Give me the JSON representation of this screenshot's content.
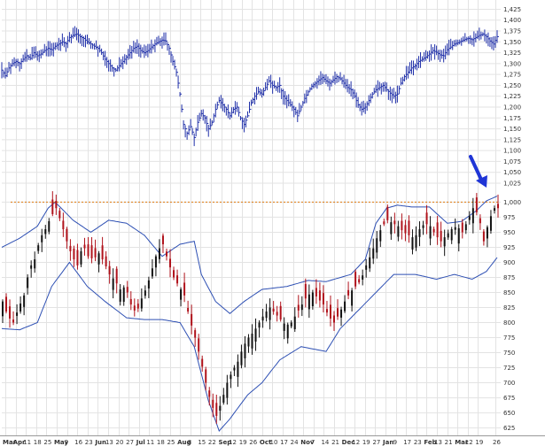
{
  "chart_data": [
    {
      "type": "ohlc",
      "panel": "top",
      "y_ticks": [
        "1,425",
        "1,400",
        "1,375",
        "1,350",
        "1,325",
        "1,300",
        "1,275",
        "1,250",
        "1,225",
        "1,200",
        "1,175",
        "1,150",
        "1,125",
        "1,100",
        "1,075",
        "1,050",
        "1,025"
      ],
      "ylim": [
        1025,
        1430
      ],
      "series_color": "#1f2fa8",
      "close_path": [
        [
          0,
          1285
        ],
        [
          2,
          1272
        ],
        [
          4,
          1290
        ],
        [
          6,
          1300
        ],
        [
          8,
          1305
        ],
        [
          10,
          1300
        ],
        [
          12,
          1310
        ],
        [
          14,
          1318
        ],
        [
          16,
          1312
        ],
        [
          18,
          1325
        ],
        [
          20,
          1318
        ],
        [
          22,
          1322
        ],
        [
          24,
          1330
        ],
        [
          26,
          1335
        ],
        [
          28,
          1332
        ],
        [
          30,
          1340
        ],
        [
          32,
          1345
        ],
        [
          34,
          1350
        ],
        [
          36,
          1346
        ],
        [
          38,
          1360
        ],
        [
          40,
          1365
        ],
        [
          42,
          1368
        ],
        [
          44,
          1362
        ],
        [
          46,
          1358
        ],
        [
          48,
          1350
        ],
        [
          50,
          1345
        ],
        [
          52,
          1340
        ],
        [
          54,
          1335
        ],
        [
          56,
          1325
        ],
        [
          58,
          1310
        ],
        [
          60,
          1300
        ],
        [
          62,
          1290
        ],
        [
          64,
          1285
        ],
        [
          66,
          1295
        ],
        [
          68,
          1305
        ],
        [
          70,
          1315
        ],
        [
          72,
          1325
        ],
        [
          74,
          1335
        ],
        [
          76,
          1340
        ],
        [
          78,
          1330
        ],
        [
          80,
          1325
        ],
        [
          82,
          1330
        ],
        [
          84,
          1338
        ],
        [
          86,
          1345
        ],
        [
          88,
          1350
        ],
        [
          90,
          1354
        ],
        [
          92,
          1352
        ],
        [
          94,
          1335
        ],
        [
          96,
          1305
        ],
        [
          98,
          1280
        ],
        [
          100,
          1230
        ],
        [
          102,
          1160
        ],
        [
          104,
          1140
        ],
        [
          106,
          1155
        ],
        [
          108,
          1130
        ],
        [
          110,
          1165
        ],
        [
          112,
          1185
        ],
        [
          114,
          1175
        ],
        [
          116,
          1150
        ],
        [
          118,
          1165
        ],
        [
          120,
          1195
        ],
        [
          122,
          1215
        ],
        [
          124,
          1205
        ],
        [
          126,
          1195
        ],
        [
          128,
          1180
        ],
        [
          130,
          1195
        ],
        [
          132,
          1200
        ],
        [
          134,
          1175
        ],
        [
          136,
          1160
        ],
        [
          138,
          1180
        ],
        [
          140,
          1210
        ],
        [
          142,
          1225
        ],
        [
          144,
          1235
        ],
        [
          146,
          1230
        ],
        [
          148,
          1245
        ],
        [
          150,
          1260
        ],
        [
          152,
          1250
        ],
        [
          154,
          1245
        ],
        [
          156,
          1250
        ],
        [
          158,
          1225
        ],
        [
          160,
          1215
        ],
        [
          162,
          1205
        ],
        [
          164,
          1195
        ],
        [
          166,
          1180
        ],
        [
          168,
          1200
        ],
        [
          170,
          1220
        ],
        [
          172,
          1235
        ],
        [
          174,
          1248
        ],
        [
          176,
          1255
        ],
        [
          178,
          1262
        ],
        [
          180,
          1268
        ],
        [
          182,
          1260
        ],
        [
          184,
          1255
        ],
        [
          186,
          1262
        ],
        [
          188,
          1270
        ],
        [
          190,
          1265
        ],
        [
          192,
          1255
        ],
        [
          194,
          1245
        ],
        [
          196,
          1240
        ],
        [
          198,
          1225
        ],
        [
          200,
          1205
        ],
        [
          202,
          1195
        ],
        [
          204,
          1200
        ],
        [
          206,
          1215
        ],
        [
          208,
          1230
        ],
        [
          210,
          1240
        ],
        [
          212,
          1245
        ],
        [
          214,
          1250
        ],
        [
          216,
          1240
        ],
        [
          218,
          1232
        ],
        [
          220,
          1225
        ],
        [
          222,
          1230
        ],
        [
          224,
          1255
        ],
        [
          226,
          1270
        ],
        [
          228,
          1280
        ],
        [
          230,
          1290
        ],
        [
          232,
          1295
        ],
        [
          234,
          1305
        ],
        [
          236,
          1310
        ],
        [
          238,
          1315
        ],
        [
          240,
          1322
        ],
        [
          242,
          1330
        ],
        [
          244,
          1326
        ],
        [
          246,
          1320
        ],
        [
          248,
          1318
        ],
        [
          250,
          1332
        ],
        [
          252,
          1338
        ],
        [
          254,
          1345
        ],
        [
          256,
          1348
        ],
        [
          258,
          1352
        ],
        [
          260,
          1356
        ],
        [
          262,
          1358
        ],
        [
          264,
          1355
        ],
        [
          266,
          1360
        ],
        [
          268,
          1365
        ],
        [
          270,
          1368
        ],
        [
          272,
          1362
        ],
        [
          274,
          1352
        ],
        [
          276,
          1345
        ],
        [
          278,
          1362
        ]
      ]
    },
    {
      "type": "candlestick",
      "panel": "bottom",
      "y_ticks": [
        "1,000",
        "975",
        "950",
        "925",
        "900",
        "875",
        "850",
        "825",
        "800",
        "775",
        "750",
        "725",
        "700",
        "675",
        "650",
        "625"
      ],
      "ylim": [
        620,
        1030
      ],
      "reference_line": 1000,
      "reference_color": "#e07a10",
      "up_color": "#111111",
      "down_color": "#b0121b",
      "band_color": "#2d4fb3",
      "arrow_color": "#1f35d6",
      "close_path": [
        [
          0,
          835
        ],
        [
          3,
          810
        ],
        [
          6,
          800
        ],
        [
          9,
          825
        ],
        [
          12,
          845
        ],
        [
          15,
          890
        ],
        [
          18,
          905
        ],
        [
          21,
          940
        ],
        [
          24,
          955
        ],
        [
          27,
          975
        ],
        [
          30,
          990
        ],
        [
          33,
          965
        ],
        [
          36,
          935
        ],
        [
          39,
          910
        ],
        [
          42,
          895
        ],
        [
          45,
          930
        ],
        [
          48,
          910
        ],
        [
          51,
          905
        ],
        [
          54,
          915
        ],
        [
          57,
          900
        ],
        [
          60,
          880
        ],
        [
          63,
          870
        ],
        [
          66,
          855
        ],
        [
          69,
          860
        ],
        [
          72,
          830
        ],
        [
          75,
          815
        ],
        [
          78,
          840
        ],
        [
          81,
          860
        ],
        [
          84,
          890
        ],
        [
          87,
          920
        ],
        [
          90,
          930
        ],
        [
          93,
          900
        ],
        [
          96,
          875
        ],
        [
          99,
          860
        ],
        [
          102,
          845
        ],
        [
          105,
          805
        ],
        [
          108,
          775
        ],
        [
          111,
          740
        ],
        [
          114,
          700
        ],
        [
          117,
          665
        ],
        [
          120,
          645
        ],
        [
          123,
          670
        ],
        [
          126,
          700
        ],
        [
          129,
          720
        ],
        [
          132,
          735
        ],
        [
          135,
          760
        ],
        [
          138,
          775
        ],
        [
          141,
          785
        ],
        [
          144,
          800
        ],
        [
          147,
          815
        ],
        [
          150,
          825
        ],
        [
          153,
          815
        ],
        [
          156,
          805
        ],
        [
          159,
          795
        ],
        [
          162,
          800
        ],
        [
          165,
          815
        ],
        [
          168,
          830
        ],
        [
          171,
          845
        ],
        [
          174,
          850
        ],
        [
          177,
          840
        ],
        [
          180,
          830
        ],
        [
          183,
          810
        ],
        [
          186,
          800
        ],
        [
          189,
          815
        ],
        [
          192,
          835
        ],
        [
          195,
          850
        ],
        [
          198,
          860
        ],
        [
          201,
          870
        ],
        [
          204,
          895
        ],
        [
          207,
          915
        ],
        [
          210,
          940
        ],
        [
          213,
          960
        ],
        [
          216,
          970
        ],
        [
          219,
          965
        ],
        [
          222,
          960
        ],
        [
          225,
          950
        ],
        [
          228,
          945
        ],
        [
          231,
          940
        ],
        [
          234,
          955
        ],
        [
          237,
          965
        ],
        [
          240,
          960
        ],
        [
          243,
          945
        ],
        [
          246,
          935
        ],
        [
          249,
          945
        ],
        [
          252,
          955
        ],
        [
          255,
          960
        ],
        [
          258,
          950
        ],
        [
          261,
          970
        ],
        [
          264,
          990
        ],
        [
          267,
          980
        ],
        [
          270,
          935
        ],
        [
          273,
          970
        ],
        [
          276,
          990
        ]
      ],
      "upper_band_path": [
        [
          0,
          925
        ],
        [
          10,
          940
        ],
        [
          20,
          960
        ],
        [
          26,
          990
        ],
        [
          30,
          1000
        ],
        [
          40,
          970
        ],
        [
          50,
          950
        ],
        [
          60,
          970
        ],
        [
          70,
          965
        ],
        [
          80,
          945
        ],
        [
          90,
          910
        ],
        [
          100,
          930
        ],
        [
          108,
          935
        ],
        [
          112,
          880
        ],
        [
          120,
          835
        ],
        [
          128,
          815
        ],
        [
          136,
          835
        ],
        [
          146,
          855
        ],
        [
          160,
          860
        ],
        [
          172,
          870
        ],
        [
          182,
          868
        ],
        [
          196,
          880
        ],
        [
          204,
          905
        ],
        [
          210,
          965
        ],
        [
          216,
          990
        ],
        [
          222,
          995
        ],
        [
          230,
          992
        ],
        [
          240,
          992
        ],
        [
          250,
          965
        ],
        [
          258,
          968
        ],
        [
          266,
          985
        ],
        [
          272,
          1002
        ],
        [
          278,
          1010
        ]
      ],
      "lower_band_path": [
        [
          0,
          790
        ],
        [
          10,
          788
        ],
        [
          20,
          800
        ],
        [
          28,
          860
        ],
        [
          38,
          900
        ],
        [
          48,
          860
        ],
        [
          58,
          835
        ],
        [
          70,
          808
        ],
        [
          80,
          805
        ],
        [
          90,
          805
        ],
        [
          100,
          800
        ],
        [
          108,
          760
        ],
        [
          116,
          670
        ],
        [
          122,
          620
        ],
        [
          128,
          640
        ],
        [
          138,
          680
        ],
        [
          146,
          700
        ],
        [
          156,
          738
        ],
        [
          168,
          760
        ],
        [
          182,
          752
        ],
        [
          190,
          790
        ],
        [
          200,
          820
        ],
        [
          210,
          850
        ],
        [
          220,
          880
        ],
        [
          232,
          880
        ],
        [
          244,
          872
        ],
        [
          254,
          880
        ],
        [
          264,
          872
        ],
        [
          272,
          885
        ],
        [
          278,
          908
        ]
      ]
    }
  ],
  "x_axis": {
    "labels": [
      {
        "text": "Mar",
        "month": true
      },
      {
        "text": "Apr",
        "month": true
      },
      {
        "text": "11",
        "month": false
      },
      {
        "text": "18",
        "month": false
      },
      {
        "text": "25",
        "month": false
      },
      {
        "text": "May",
        "month": true
      },
      {
        "text": "9",
        "month": false
      },
      {
        "text": "16",
        "month": false
      },
      {
        "text": "23",
        "month": false
      },
      {
        "text": "Jun",
        "month": true
      },
      {
        "text": "13",
        "month": false
      },
      {
        "text": "20",
        "month": false
      },
      {
        "text": "27",
        "month": false
      },
      {
        "text": "Jul",
        "month": true
      },
      {
        "text": "11",
        "month": false
      },
      {
        "text": "18",
        "month": false
      },
      {
        "text": "25",
        "month": false
      },
      {
        "text": "Aug",
        "month": true
      },
      {
        "text": "8",
        "month": false
      },
      {
        "text": "15",
        "month": false
      },
      {
        "text": "22",
        "month": false
      },
      {
        "text": "Sep",
        "month": true
      },
      {
        "text": "12",
        "month": false
      },
      {
        "text": "19",
        "month": false
      },
      {
        "text": "26",
        "month": false
      },
      {
        "text": "Oct",
        "month": true
      },
      {
        "text": "10",
        "month": false
      },
      {
        "text": "17",
        "month": false
      },
      {
        "text": "24",
        "month": false
      },
      {
        "text": "Nov",
        "month": true
      },
      {
        "text": "7",
        "month": false
      },
      {
        "text": "14",
        "month": false
      },
      {
        "text": "21",
        "month": false
      },
      {
        "text": "Dec",
        "month": true
      },
      {
        "text": "12",
        "month": false
      },
      {
        "text": "19",
        "month": false
      },
      {
        "text": "27",
        "month": false
      },
      {
        "text": "Jan",
        "month": true
      },
      {
        "text": "9",
        "month": false
      },
      {
        "text": "17",
        "month": false
      },
      {
        "text": "23",
        "month": false
      },
      {
        "text": "Feb",
        "month": true
      },
      {
        "text": "13",
        "month": false
      },
      {
        "text": "21",
        "month": false
      },
      {
        "text": "Mar",
        "month": true
      },
      {
        "text": "12",
        "month": false
      },
      {
        "text": "19",
        "month": false
      },
      {
        "text": "26",
        "month": false
      }
    ]
  },
  "colors": {
    "grid": "#e3e3e3",
    "axis_text": "#333333",
    "background": "#ffffff"
  }
}
